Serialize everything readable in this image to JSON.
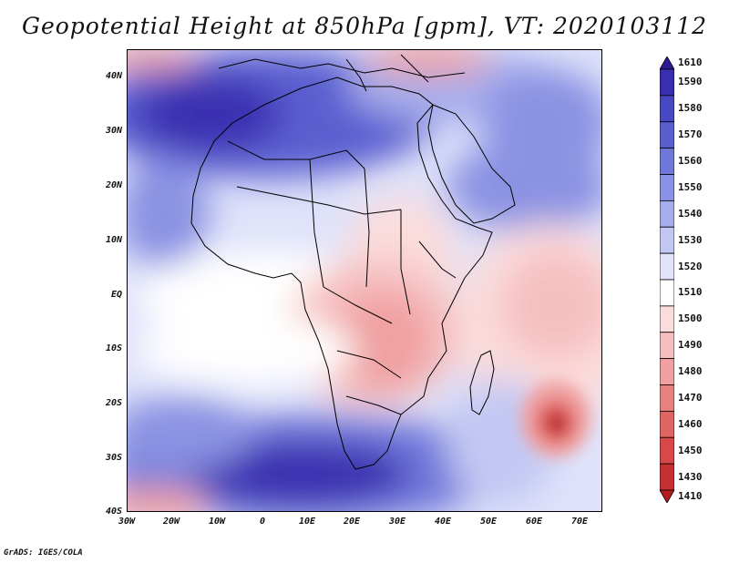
{
  "title": "Geopotential Height at 850hPa [gpm], VT: 2020103112",
  "credit": "GrADS: IGES/COLA",
  "lat_labels": [
    "40N",
    "30N",
    "20N",
    "10N",
    "EQ",
    "10S",
    "20S",
    "30S",
    "40S"
  ],
  "lon_labels": [
    "30W",
    "20W",
    "10W",
    "0",
    "10E",
    "20E",
    "30E",
    "40E",
    "50E",
    "60E",
    "70E"
  ],
  "colorbar": {
    "levels": [
      "1610",
      "1590",
      "1580",
      "1570",
      "1560",
      "1550",
      "1540",
      "1530",
      "1520",
      "1510",
      "1500",
      "1490",
      "1480",
      "1470",
      "1460",
      "1450",
      "1430",
      "1410"
    ],
    "colors": [
      "#2c1a94",
      "#3a2fb0",
      "#4848c2",
      "#5a5fd0",
      "#6f78da",
      "#8a93e3",
      "#a5adec",
      "#c3c8f3",
      "#e2e4fb",
      "#ffffff",
      "#fbdcdc",
      "#f6bfbf",
      "#f0a0a0",
      "#e88080",
      "#e06464",
      "#d84848",
      "#c73030",
      "#b51c1c"
    ]
  },
  "map": {
    "region": "Africa",
    "variable": "Geopotential Height",
    "level": "850hPa",
    "units": "gpm"
  }
}
